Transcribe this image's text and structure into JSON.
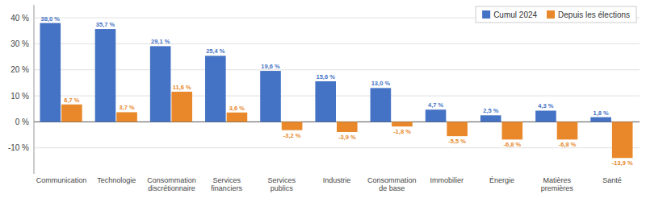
{
  "chart_data": {
    "type": "bar",
    "categories": [
      "Communication",
      "Technologie",
      "Consommation\ndiscrétionnaire",
      "Services\nfinanciers",
      "Services\npublics",
      "Industrie",
      "Consommation\nde base",
      "Immobilier",
      "Énergie",
      "Matières\npremières",
      "Santé"
    ],
    "series": [
      {
        "name": "Cumul 2024",
        "color": "#4472C4",
        "values": [
          38.0,
          35.7,
          29.1,
          25.4,
          19.6,
          15.6,
          13.0,
          4.7,
          2.5,
          4.3,
          1.8
        ],
        "value_labels": [
          "38,0 %",
          "35,7 %",
          "29,1 %",
          "25,4 %",
          "19,6 %",
          "15,6 %",
          "13,0 %",
          "4,7 %",
          "2,5 %",
          "4,3 %",
          "1,8 %"
        ]
      },
      {
        "name": "Depuis les élections",
        "color": "#E8882A",
        "values": [
          6.7,
          3.7,
          11.6,
          3.6,
          -3.2,
          -3.9,
          -1.8,
          -5.5,
          -6.8,
          -6.8,
          -13.9
        ],
        "value_labels": [
          "6,7 %",
          "3,7 %",
          "11,6 %",
          "3,6 %",
          "-3,2 %",
          "-3,9 %",
          "-1,8 %",
          "-5,5 %",
          "-6,8 %",
          "-6,8 %",
          "-13,9 %"
        ]
      }
    ],
    "ylim": [
      -20,
      45
    ],
    "yticks": [
      {
        "value": -10,
        "label": "-10 %"
      },
      {
        "value": 0,
        "label": "0 %"
      },
      {
        "value": 10,
        "label": "10 %"
      },
      {
        "value": 20,
        "label": "20 %"
      },
      {
        "value": 30,
        "label": "30 %"
      },
      {
        "value": 40,
        "label": "40 %"
      }
    ],
    "grid": true,
    "legend": "upper right",
    "data_labels": true
  }
}
